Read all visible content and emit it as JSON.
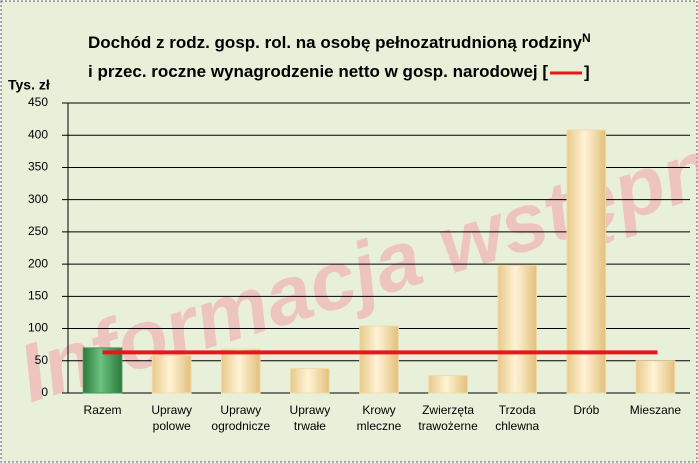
{
  "chart_data": {
    "type": "bar",
    "title_line1": "Dochód z rodz. gosp. rol. na osobę pełnozatrudnioną rodziny",
    "title_superscript": "N",
    "title_line2": "i przec. roczne wynagrodzenie netto w gosp. narodowej [",
    "title_end": "]",
    "ylabel": "Tys. zł",
    "watermark": "Informacja wstępna",
    "categories": [
      [
        "Razem"
      ],
      [
        "Uprawy",
        "polowe"
      ],
      [
        "Uprawy",
        "ogrodnicze"
      ],
      [
        "Uprawy",
        "trwałe"
      ],
      [
        "Krowy",
        "mleczne"
      ],
      [
        "Zwierzęta",
        "trawożerne"
      ],
      [
        "Trzoda",
        "chlewna"
      ],
      [
        "Drób"
      ],
      [
        "Mieszane"
      ]
    ],
    "values": [
      70,
      58,
      68,
      38,
      104,
      27,
      198,
      408,
      50
    ],
    "colors": [
      "#3f9a55",
      "#f3dba8",
      "#f3dba8",
      "#f3dba8",
      "#f3dba8",
      "#f3dba8",
      "#f3dba8",
      "#f3dba8",
      "#f3dba8"
    ],
    "reference_line": {
      "value": 63,
      "color": "#e8161b"
    },
    "ylim": [
      0,
      450
    ],
    "yticks": [
      0,
      50,
      100,
      150,
      200,
      250,
      300,
      350,
      400,
      450
    ],
    "grid": true
  }
}
